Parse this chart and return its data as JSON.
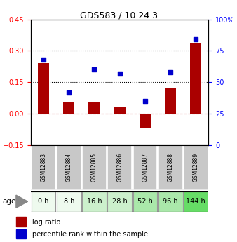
{
  "title": "GDS583 / 10.24.3",
  "samples": [
    "GSM12883",
    "GSM12884",
    "GSM12885",
    "GSM12886",
    "GSM12887",
    "GSM12888",
    "GSM12889"
  ],
  "ages": [
    "0 h",
    "8 h",
    "16 h",
    "28 h",
    "52 h",
    "96 h",
    "144 h"
  ],
  "log_ratio": [
    0.24,
    0.055,
    0.055,
    0.03,
    -0.065,
    0.12,
    0.335
  ],
  "percentile_rank": [
    68,
    42,
    60,
    57,
    35,
    58,
    84
  ],
  "ylim_left": [
    -0.15,
    0.45
  ],
  "ylim_right": [
    0,
    100
  ],
  "yticks_left": [
    -0.15,
    0,
    0.15,
    0.3,
    0.45
  ],
  "yticks_right": [
    0,
    25,
    50,
    75,
    100
  ],
  "bar_color": "#aa0000",
  "dot_color": "#0000cc",
  "zero_line_color": "#cc4444",
  "grid_line_color": "#000000",
  "age_colors": [
    "#eefaee",
    "#eefaee",
    "#ccf0cc",
    "#ccf0cc",
    "#aae8aa",
    "#aae8aa",
    "#66dd66"
  ],
  "sample_box_color": "#c8c8c8",
  "label_log_ratio": "log ratio",
  "label_percentile": "percentile rank within the sample",
  "label_age": "age"
}
